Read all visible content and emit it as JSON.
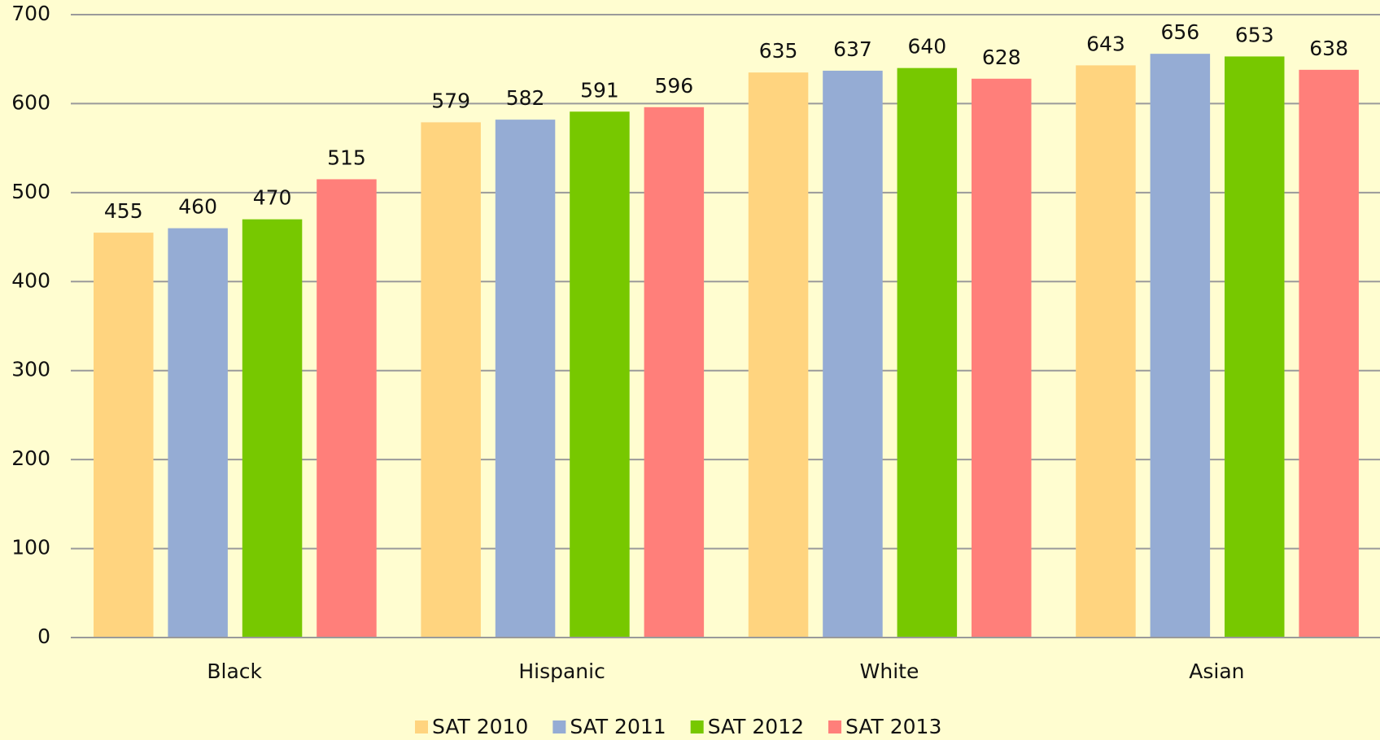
{
  "chart_data": {
    "type": "bar",
    "categories": [
      "Black",
      "Hispanic",
      "White",
      "Asian"
    ],
    "series": [
      {
        "name": "SAT 2010",
        "color": "#ffd47f",
        "values": [
          455,
          579,
          635,
          643
        ]
      },
      {
        "name": "SAT 2011",
        "color": "#95acd4",
        "values": [
          460,
          582,
          637,
          656
        ]
      },
      {
        "name": "SAT 2012",
        "color": "#77c800",
        "values": [
          470,
          591,
          640,
          653
        ]
      },
      {
        "name": "SAT 2013",
        "color": "#ff7f7a",
        "values": [
          515,
          596,
          628,
          638
        ]
      }
    ],
    "ylim": [
      0,
      700
    ],
    "yticks": [
      0,
      100,
      200,
      300,
      400,
      500,
      600,
      700
    ],
    "grid": true,
    "legend": "bottom"
  }
}
